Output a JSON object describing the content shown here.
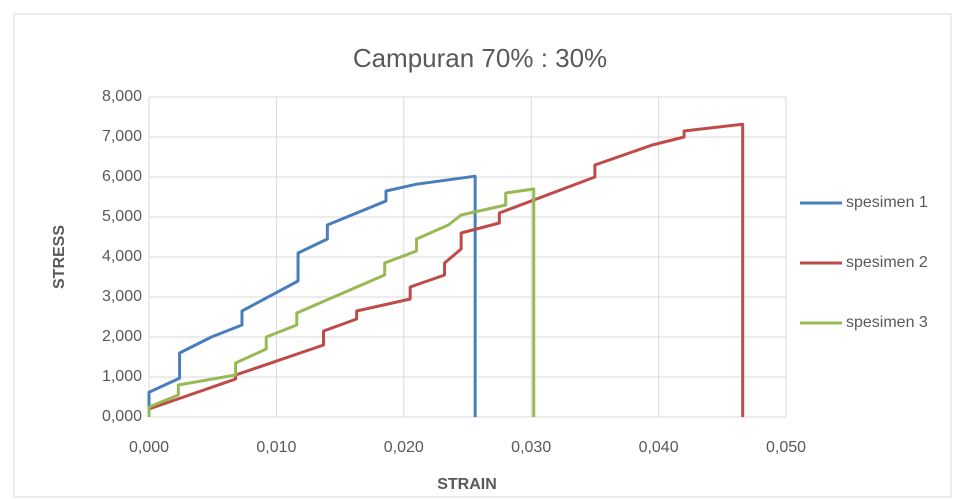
{
  "chart_data": {
    "type": "line",
    "title": "Campuran 70% : 30%",
    "x_label": "STRAIN",
    "y_label": "STRESS",
    "xlim": [
      0,
      0.05
    ],
    "ylim": [
      0,
      8
    ],
    "xticks": [
      {
        "value": 0,
        "label": "0,000"
      },
      {
        "value": 0.01,
        "label": "0,010"
      },
      {
        "value": 0.02,
        "label": "0,020"
      },
      {
        "value": 0.03,
        "label": "0,030"
      },
      {
        "value": 0.04,
        "label": "0,040"
      },
      {
        "value": 0.05,
        "label": "0,050"
      }
    ],
    "yticks": [
      {
        "value": 0,
        "label": "0,000"
      },
      {
        "value": 1,
        "label": "1,000"
      },
      {
        "value": 2,
        "label": "2,000"
      },
      {
        "value": 3,
        "label": "3,000"
      },
      {
        "value": 4,
        "label": "4,000"
      },
      {
        "value": 5,
        "label": "5,000"
      },
      {
        "value": 6,
        "label": "6,000"
      },
      {
        "value": 7,
        "label": "7,000"
      },
      {
        "value": 8,
        "label": "8,000"
      }
    ],
    "grid": true,
    "legend": "right",
    "series": [
      {
        "name": "spesimen 1",
        "color": "#4a7ebb",
        "x": [
          0,
          0,
          0.0024,
          0.0024,
          0.0049,
          0.0073,
          0.0073,
          0.0117,
          0.0117,
          0.014,
          0.014,
          0.0186,
          0.0186,
          0.021,
          0.0256,
          0.0256
        ],
        "values": [
          0,
          0.62,
          0.97,
          1.6,
          2.0,
          2.3,
          2.65,
          3.4,
          4.1,
          4.45,
          4.8,
          5.4,
          5.65,
          5.82,
          6.02,
          0
        ]
      },
      {
        "name": "spesimen 2",
        "color": "#be4b48",
        "x": [
          0,
          0.0068,
          0.0068,
          0.0137,
          0.0137,
          0.0163,
          0.0163,
          0.0205,
          0.0205,
          0.0232,
          0.0232,
          0.0245,
          0.0245,
          0.0275,
          0.0275,
          0.035,
          0.035,
          0.0395,
          0.042,
          0.042,
          0.0466,
          0.0466
        ],
        "values": [
          0.2,
          0.95,
          1.05,
          1.8,
          2.15,
          2.45,
          2.65,
          2.95,
          3.25,
          3.55,
          3.85,
          4.2,
          4.6,
          4.85,
          5.1,
          6.0,
          6.3,
          6.8,
          7.0,
          7.15,
          7.32,
          0
        ]
      },
      {
        "name": "spesimen 3",
        "color": "#98b954",
        "x": [
          0,
          0,
          0.0023,
          0.0023,
          0.0068,
          0.0068,
          0.0092,
          0.0092,
          0.0116,
          0.0116,
          0.0185,
          0.0185,
          0.021,
          0.021,
          0.0235,
          0.0245,
          0.028,
          0.028,
          0.0302,
          0.0302
        ],
        "values": [
          0,
          0.25,
          0.55,
          0.8,
          1.05,
          1.35,
          1.7,
          2.0,
          2.3,
          2.6,
          3.55,
          3.85,
          4.15,
          4.45,
          4.8,
          5.05,
          5.3,
          5.6,
          5.7,
          0
        ]
      }
    ]
  }
}
